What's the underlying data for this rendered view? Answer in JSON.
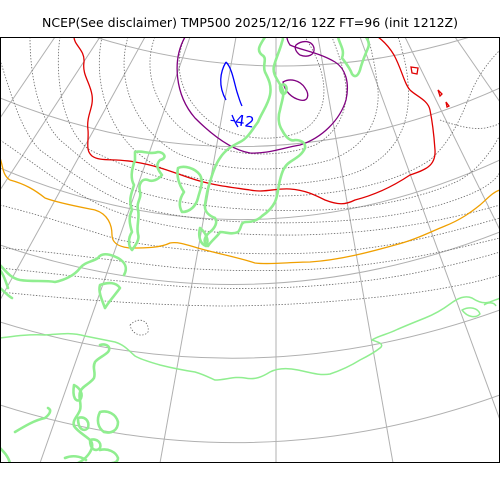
{
  "map": {
    "title": "NCEP(See disclaimer) TMP500 2025/12/16 12Z FT=96 (init 1212Z)",
    "contour_labels": [
      {
        "text": "-42",
        "color": "#0000ff"
      }
    ],
    "colors": {
      "coastline": "#90ee90",
      "graticule": "#b0b0b0",
      "isotherm": "#666666",
      "coldest_contour": "#800080",
      "cold_contour": "#0000ff",
      "mid_contour": "#e00000",
      "warm_contour": "#f0a000"
    }
  }
}
